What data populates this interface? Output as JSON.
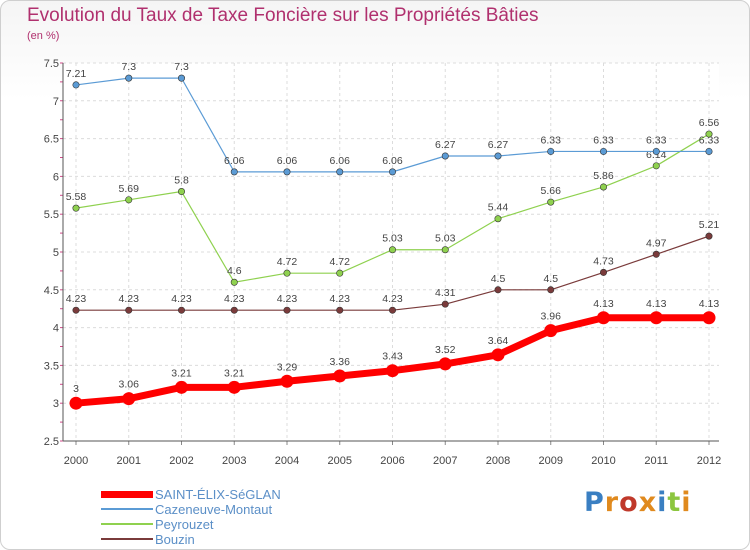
{
  "title": "Evolution du Taux de Taxe Foncière sur les Propriétés Bâties",
  "unit": "(en %)",
  "logo": "Proxiti",
  "chart_data": {
    "type": "line",
    "x": [
      "2000",
      "2001",
      "2002",
      "2003",
      "2004",
      "2005",
      "2006",
      "2007",
      "2008",
      "2009",
      "2010",
      "2011",
      "2012"
    ],
    "ylim": [
      2.5,
      7.5
    ],
    "yticks": [
      "2.5",
      "3",
      "3.5",
      "4",
      "4.5",
      "5",
      "5.5",
      "6",
      "6.5",
      "7",
      "7.5"
    ],
    "grid": true,
    "legend_position": "bottom-left",
    "series": [
      {
        "name": "SAINT-ÉLIX-SéGLAN",
        "color": "#ff0000",
        "values": [
          3,
          3.06,
          3.21,
          3.21,
          3.29,
          3.36,
          3.43,
          3.52,
          3.64,
          3.96,
          4.13,
          4.13,
          4.13
        ],
        "labels": [
          "3",
          "3.06",
          "3.21",
          "3.21",
          "3.29",
          "3.36",
          "3.43",
          "3.52",
          "3.64",
          "3.96",
          "4.13",
          "4.13",
          "4.13"
        ]
      },
      {
        "name": "Cazeneuve-Montaut",
        "color": "#5b9bd5",
        "values": [
          7.21,
          7.3,
          7.3,
          6.06,
          6.06,
          6.06,
          6.06,
          6.27,
          6.27,
          6.33,
          6.33,
          6.33,
          6.33
        ],
        "labels": [
          "7.21",
          "7.3",
          "7.3",
          "6.06",
          "6.06",
          "6.06",
          "6.06",
          "6.27",
          "6.27",
          "6.33",
          "6.33",
          "6.33",
          "6.33"
        ]
      },
      {
        "name": "Peyrouzet",
        "color": "#8fd14f",
        "values": [
          5.58,
          5.69,
          5.8,
          4.6,
          4.72,
          4.72,
          5.03,
          5.03,
          5.44,
          5.66,
          5.86,
          6.14,
          6.56
        ],
        "labels": [
          "5.58",
          "5.69",
          "5.8",
          "4.6",
          "4.72",
          "4.72",
          "5.03",
          "5.03",
          "5.44",
          "5.66",
          "5.86",
          "6.14",
          "6.56"
        ]
      },
      {
        "name": "Bouzin",
        "color": "#7a3b3b",
        "values": [
          4.23,
          4.23,
          4.23,
          4.23,
          4.23,
          4.23,
          4.23,
          4.31,
          4.5,
          4.5,
          4.73,
          4.97,
          5.21
        ],
        "labels": [
          "4.23",
          "4.23",
          "4.23",
          "4.23",
          "4.23",
          "4.23",
          "4.23",
          "4.31",
          "4.5",
          "4.5",
          "4.73",
          "4.97",
          "5.21"
        ]
      }
    ]
  }
}
